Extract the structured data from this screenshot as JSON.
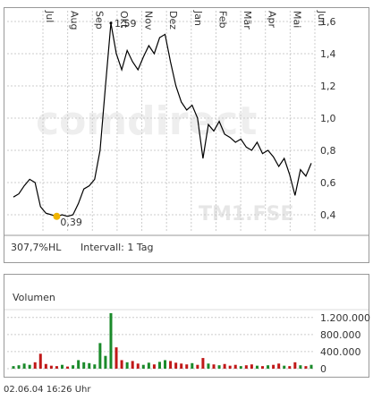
{
  "chart_data": [
    {
      "type": "line",
      "watermark": "comdirect",
      "symbol": "TM1.FSE",
      "x_labels": [
        "Jul",
        "Aug",
        "Sep",
        "Okt",
        "Nov",
        "Dez",
        "Jan",
        "Feb",
        "Mär",
        "Apr",
        "Mai",
        "Jun"
      ],
      "series": [
        {
          "color": "#000000",
          "values": [
            0.51,
            0.53,
            0.58,
            0.62,
            0.6,
            0.45,
            0.41,
            0.4,
            0.39,
            0.4,
            0.39,
            0.4,
            0.47,
            0.56,
            0.58,
            0.62,
            0.8,
            1.2,
            1.59,
            1.4,
            1.3,
            1.42,
            1.35,
            1.3,
            1.38,
            1.45,
            1.4,
            1.5,
            1.52,
            1.35,
            1.2,
            1.1,
            1.05,
            1.08,
            1.0,
            0.75,
            0.96,
            0.92,
            0.98,
            0.9,
            0.88,
            0.85,
            0.87,
            0.82,
            0.8,
            0.85,
            0.78,
            0.8,
            0.76,
            0.7,
            0.75,
            0.65,
            0.52,
            0.68,
            0.64,
            0.72
          ]
        }
      ],
      "annotations": [
        {
          "text": "1,59",
          "value": 1.59
        },
        {
          "text": "0,39",
          "value": 0.39
        }
      ],
      "ylim": [
        0.3,
        1.65
      ],
      "yticks": [
        {
          "value": 0.4,
          "label": "0,4"
        },
        {
          "value": 0.6,
          "label": "0,6"
        },
        {
          "value": 0.8,
          "label": "0,8"
        },
        {
          "value": 1.0,
          "label": "1,0"
        },
        {
          "value": 1.2,
          "label": "1,2"
        },
        {
          "value": 1.4,
          "label": "1,4"
        },
        {
          "value": 1.6,
          "label": "1,6"
        }
      ],
      "footer_left": "307,7%HL",
      "footer_right": "Intervall: 1 Tag"
    },
    {
      "type": "bar",
      "title": "Volumen",
      "values": [
        60000,
        80000,
        120000,
        90000,
        150000,
        350000,
        110000,
        70000,
        60000,
        90000,
        50000,
        80000,
        200000,
        150000,
        130000,
        100000,
        600000,
        300000,
        1300000,
        500000,
        200000,
        150000,
        180000,
        120000,
        90000,
        140000,
        100000,
        160000,
        200000,
        180000,
        140000,
        120000,
        100000,
        130000,
        90000,
        250000,
        120000,
        100000,
        80000,
        110000,
        70000,
        90000,
        60000,
        80000,
        100000,
        70000,
        60000,
        80000,
        90000,
        120000,
        70000,
        60000,
        150000,
        80000,
        60000,
        90000
      ],
      "up_color": "#1a8a2a",
      "down_color": "#c01818",
      "ylim": [
        0,
        1300000
      ],
      "yticks": [
        0,
        {
          "value": 400000,
          "label": "400.000"
        },
        {
          "value": 800000,
          "label": "800.000"
        },
        {
          "value": 1200000,
          "label": "1.200.000"
        }
      ]
    }
  ],
  "footer": "02.06.04    16:26 Uhr"
}
